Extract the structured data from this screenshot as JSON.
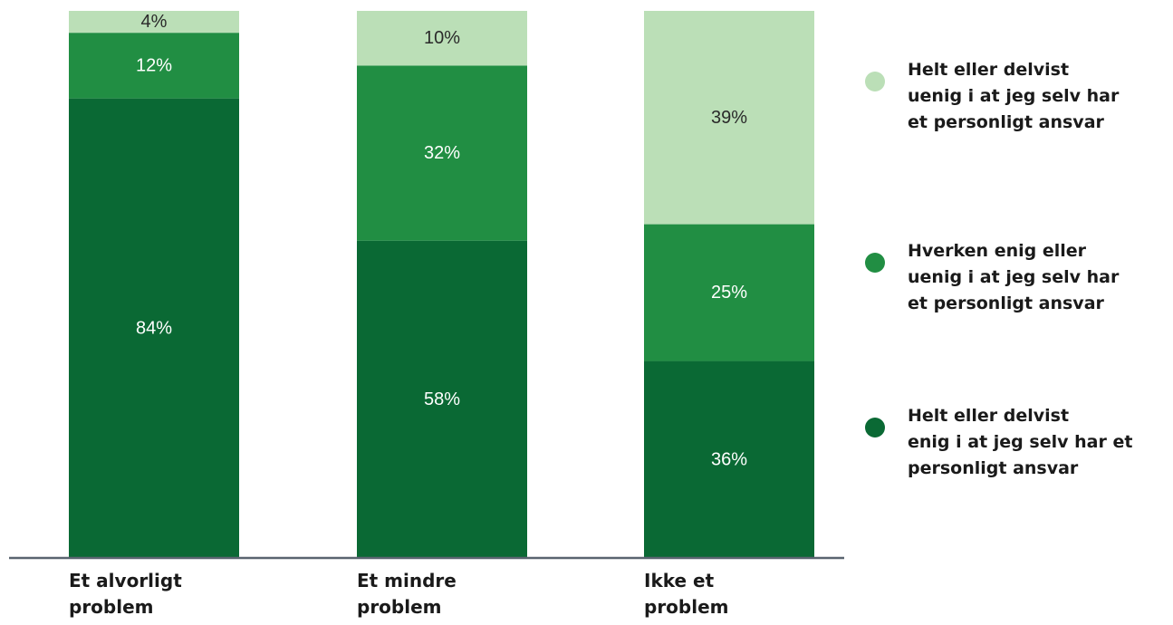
{
  "chart_data": {
    "type": "bar",
    "stacked": true,
    "normalized_percent": true,
    "categories": [
      "Et alvorligt\nproblem",
      "Et mindre\nproblem",
      "Ikke et\nproblem"
    ],
    "series": [
      {
        "name": "Helt eller delvist\nenig i at jeg selv har et\npersonligt ansvar",
        "values": [
          84,
          58,
          36
        ],
        "labels": [
          "84%",
          "58%",
          "36%"
        ],
        "color": "#0a6934",
        "label_color": "#ffffff"
      },
      {
        "name": "Hverken enig eller\nuenig i at jeg selv har\net personligt ansvar",
        "values": [
          12,
          32,
          25
        ],
        "labels": [
          "12%",
          "32%",
          "25%"
        ],
        "color": "#218e43",
        "label_color": "#ffffff"
      },
      {
        "name": "Helt eller delvist\nuenig i at jeg selv har\net personligt ansvar",
        "values": [
          4,
          10,
          39
        ],
        "labels": [
          "4%",
          "10%",
          "39%"
        ],
        "color": "#bbdfb7",
        "label_color": "#2a2a2a"
      }
    ],
    "ylim": [
      0,
      100
    ],
    "grid": false,
    "legend_position": "right",
    "axis_color": "#5a6470"
  }
}
